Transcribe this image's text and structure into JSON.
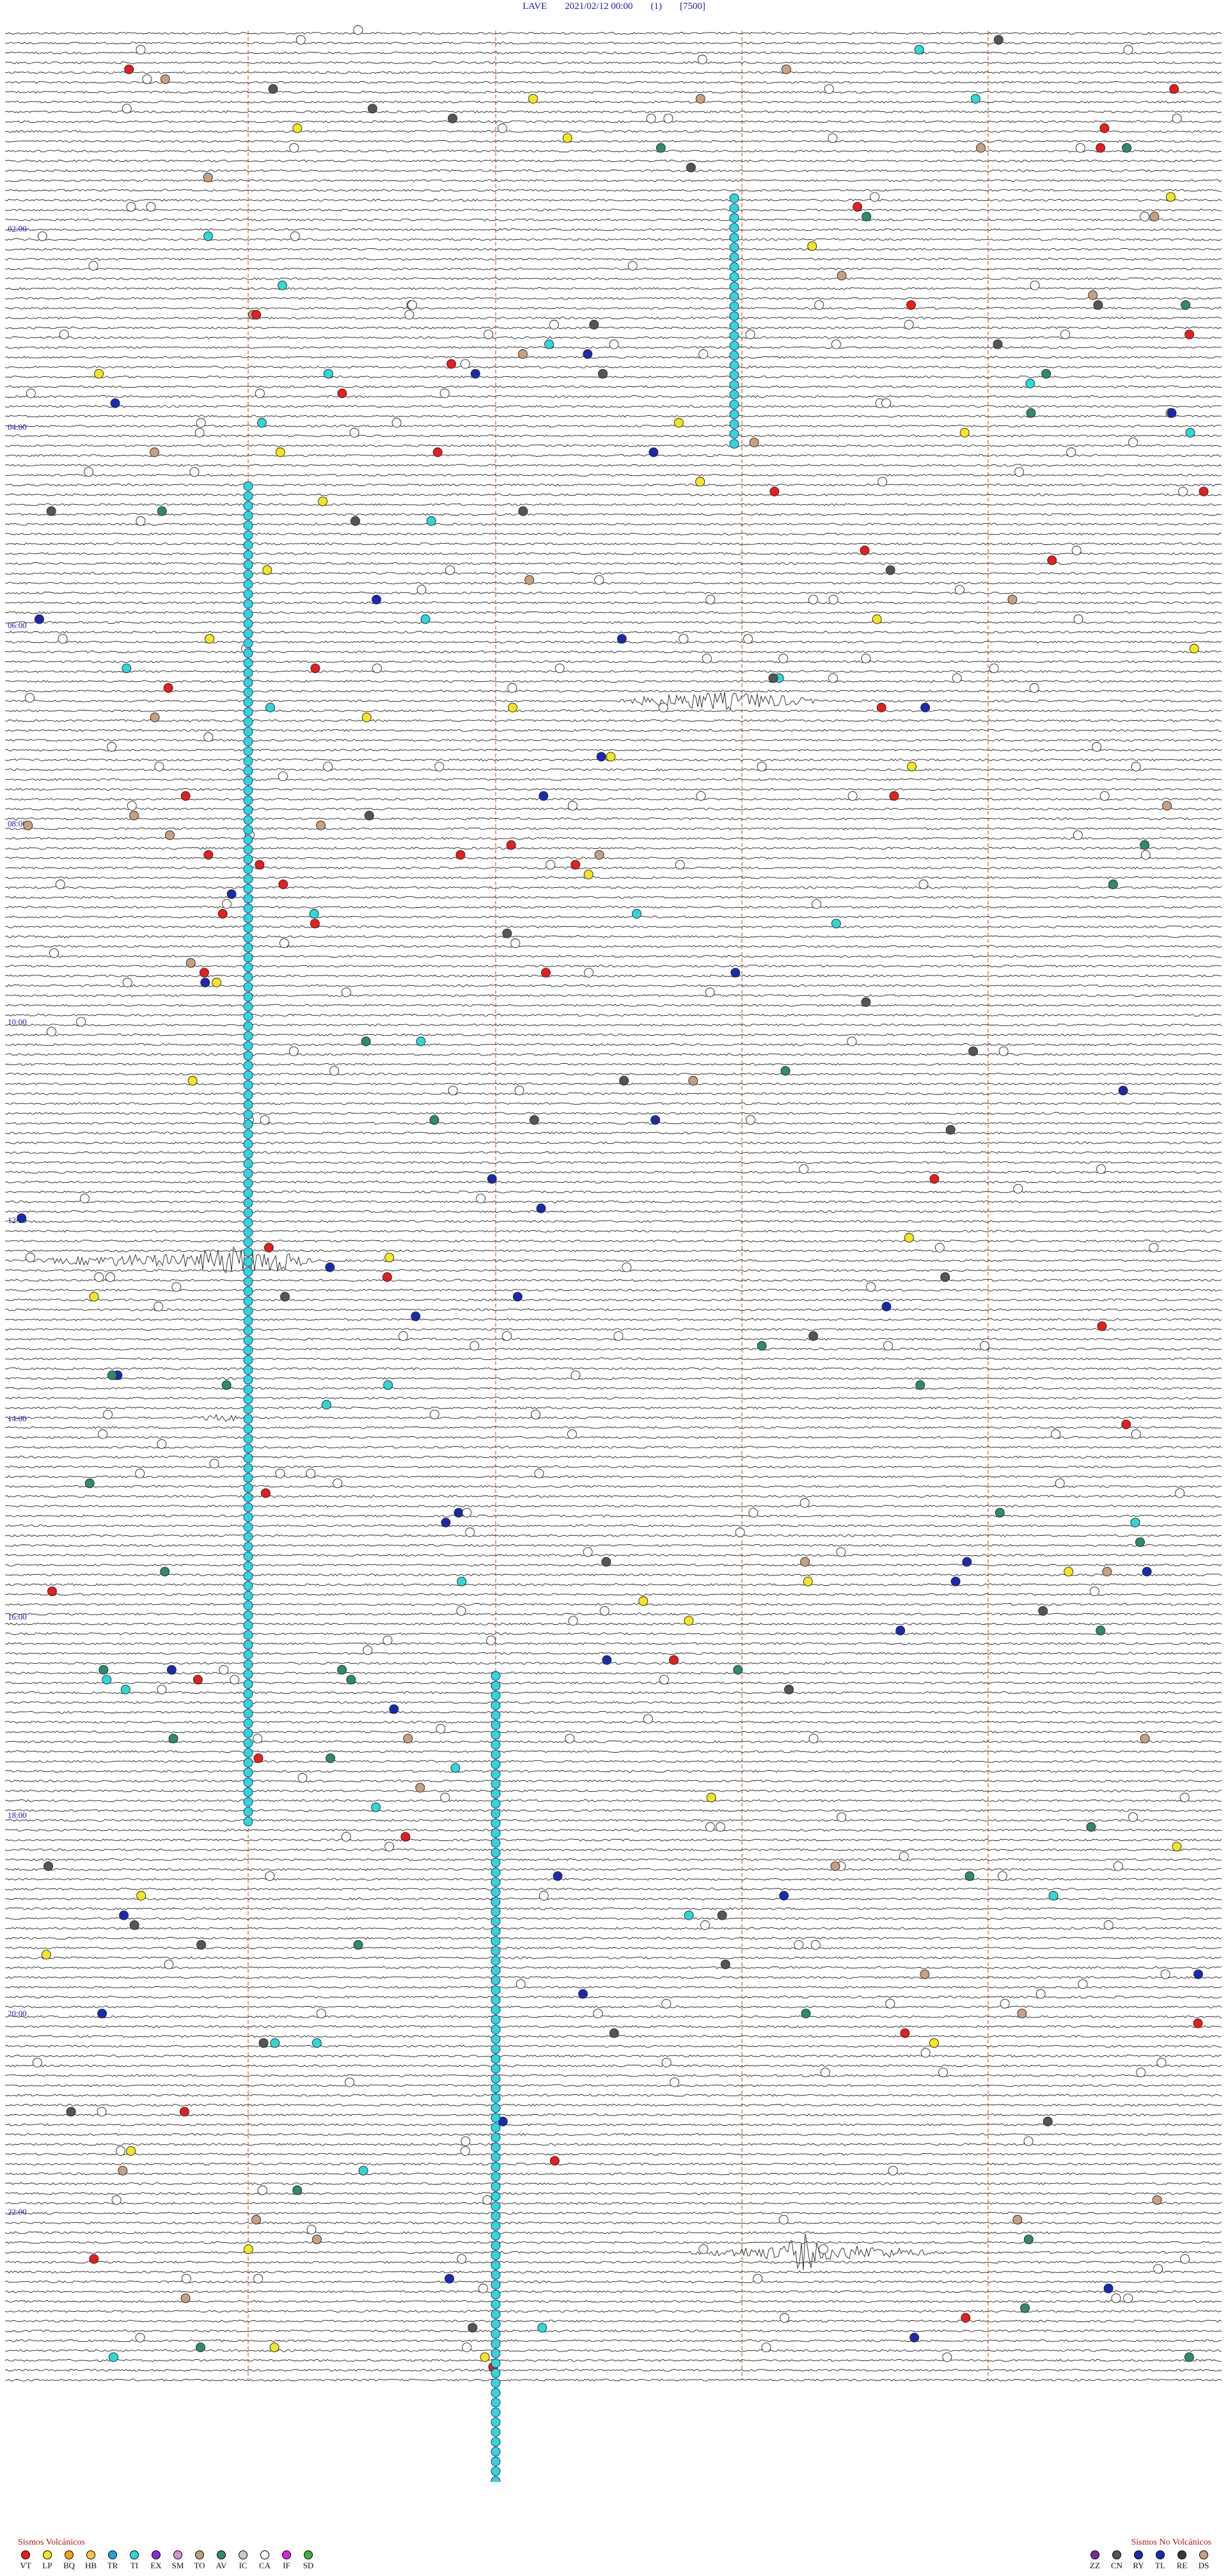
{
  "header": {
    "station": "LAVE",
    "datetime": "2021/02/12 00:00",
    "channel": "(1)",
    "scale": "[7500]"
  },
  "time_labels": [
    "02:00",
    "04:00",
    "06:00",
    "08:00",
    "10:00",
    "12:00",
    "14:00",
    "16:00",
    "18:00",
    "20:00",
    "22:00"
  ],
  "colors": {
    "trace": "#222222",
    "minute_marker": "#d07a50",
    "time_label": "#1a1ab0",
    "legend_title": "#b01a1a"
  },
  "legend_volcanic": {
    "title": "Sismos Volcánicos",
    "items": [
      {
        "code": "VT",
        "color": "#e81d1d"
      },
      {
        "code": "LP",
        "color": "#f5e61e"
      },
      {
        "code": "BQ",
        "color": "#f0a41a"
      },
      {
        "code": "HB",
        "color": "#f5c842"
      },
      {
        "code": "TR",
        "color": "#2aa0d8"
      },
      {
        "code": "TI",
        "color": "#2ed8d8"
      },
      {
        "code": "EX",
        "color": "#8a2be2"
      },
      {
        "code": "SM",
        "color": "#d98fd9"
      },
      {
        "code": "TO",
        "color": "#c0a080"
      },
      {
        "code": "AV",
        "color": "#2e8b6b"
      },
      {
        "code": "IC",
        "color": "#c8c8c8"
      },
      {
        "code": "CA",
        "color": "#ffffff"
      },
      {
        "code": "IF",
        "color": "#e020e0"
      },
      {
        "code": "SD",
        "color": "#3cb43c"
      }
    ]
  },
  "legend_nonvolcanic": {
    "title": "Sismos No Volcánicos",
    "items": [
      {
        "code": "ZZ",
        "color": "#7a2aa0"
      },
      {
        "code": "CN",
        "color": "#555555"
      },
      {
        "code": "RY",
        "color": "#1a2ab0"
      },
      {
        "code": "TL",
        "color": "#1a2ab0"
      },
      {
        "code": "RE",
        "color": "#3a3a3a"
      },
      {
        "code": "DS",
        "color": "#c8a080"
      }
    ]
  }
}
